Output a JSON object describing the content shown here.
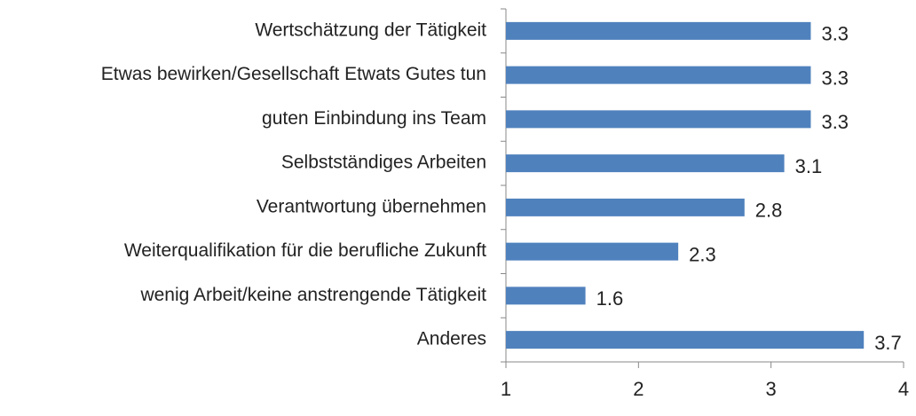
{
  "chart_data": {
    "type": "bar",
    "orientation": "horizontal",
    "categories": [
      "Wertschätzung der Tätigkeit",
      "Etwas bewirken/Gesellschaft Etwats Gutes tun",
      "guten Einbindung ins Team",
      "Selbstständiges Arbeiten",
      "Verantwortung übernehmen",
      "Weiterqualifikation für die berufliche Zukunft",
      "wenig Arbeit/keine anstrengende Tätigkeit",
      "Anderes"
    ],
    "values": [
      3.3,
      3.3,
      3.3,
      3.1,
      2.8,
      2.3,
      1.6,
      3.7
    ],
    "color": "#4f81bd",
    "xlim": [
      1,
      4
    ],
    "xticks": [
      1,
      2,
      3,
      4
    ],
    "grid": false
  }
}
